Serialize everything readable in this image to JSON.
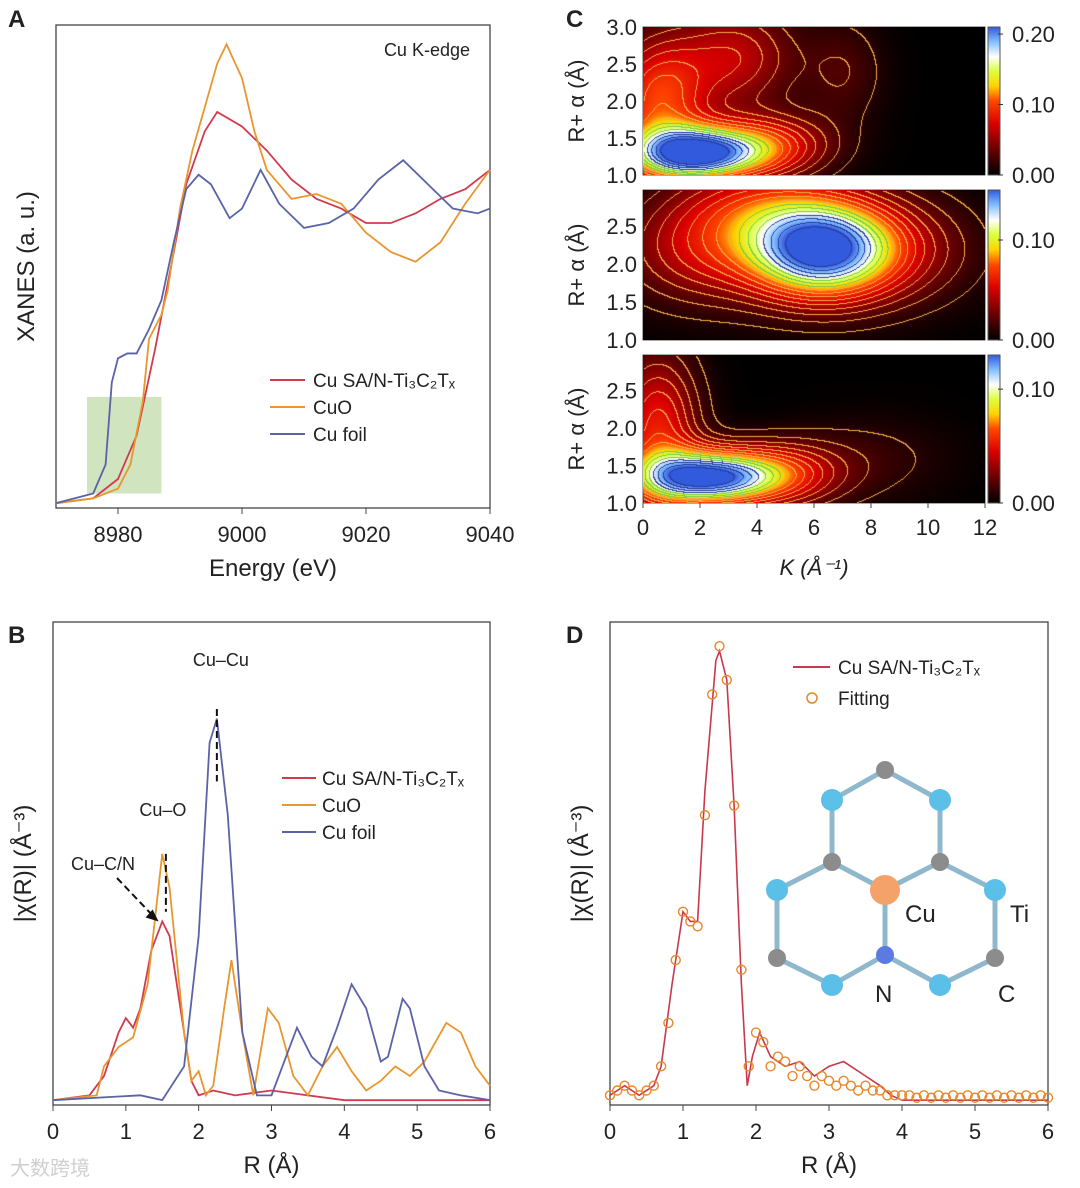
{
  "watermark": "大数跨境",
  "colors": {
    "cu_sa": "#d23a4e",
    "cuo": "#e8962e",
    "cu_foil": "#5a63a8",
    "highlight": "#c4ddb0",
    "fit": "#e8872a",
    "ti": "#5bbfe8",
    "cu_atom": "#f4a26a",
    "n_atom": "#5b7be0",
    "c_atom": "#8c8c8c"
  },
  "chart_data": [
    {
      "panel": "A",
      "type": "line",
      "annotation": "Cu K-edge",
      "xlabel": "Energy (eV)",
      "ylabel": "XANES (a. u.)",
      "xlim": [
        8970,
        9040
      ],
      "ylim": [
        0,
        1
      ],
      "xticks": [
        8980,
        9000,
        9020,
        9040
      ],
      "highlight_region": {
        "x": [
          8975,
          8987
        ],
        "y": [
          0.03,
          0.23
        ]
      },
      "legend_position": "middle-right",
      "series": [
        {
          "name": "Cu SA/N-Ti₃C₂Tₓ",
          "color": "#d23a4e",
          "x": [
            8970,
            8976,
            8980,
            8983,
            8986,
            8989,
            8991,
            8994,
            8996,
            9000,
            9004,
            9008,
            9012,
            9016,
            9020,
            9024,
            9028,
            9032,
            9036,
            9040
          ],
          "y": [
            0.01,
            0.02,
            0.06,
            0.15,
            0.33,
            0.53,
            0.67,
            0.78,
            0.82,
            0.79,
            0.74,
            0.68,
            0.64,
            0.62,
            0.59,
            0.59,
            0.61,
            0.64,
            0.66,
            0.7
          ]
        },
        {
          "name": "CuO",
          "color": "#e8962e",
          "x": [
            8970,
            8976,
            8980,
            8982,
            8984,
            8985,
            8987,
            8988,
            8990,
            8992,
            8994,
            8996,
            8997.5,
            9000,
            9002,
            9004,
            9008,
            9012,
            9016,
            9020,
            9024,
            9028,
            9032,
            9036,
            9040
          ],
          "y": [
            0.01,
            0.02,
            0.04,
            0.09,
            0.22,
            0.35,
            0.4,
            0.45,
            0.62,
            0.74,
            0.83,
            0.92,
            0.96,
            0.89,
            0.78,
            0.7,
            0.64,
            0.65,
            0.63,
            0.57,
            0.53,
            0.51,
            0.55,
            0.63,
            0.7
          ]
        },
        {
          "name": "Cu foil",
          "color": "#5a63a8",
          "x": [
            8970,
            8976,
            8978,
            8979,
            8980,
            8981.5,
            8983,
            8985,
            8987,
            8989,
            8991,
            8993,
            8995,
            8998,
            9000,
            9003,
            9006,
            9010,
            9014,
            9018,
            9022,
            9026,
            9030,
            9034,
            9038,
            9040
          ],
          "y": [
            0.01,
            0.03,
            0.09,
            0.26,
            0.31,
            0.32,
            0.32,
            0.37,
            0.43,
            0.55,
            0.66,
            0.69,
            0.67,
            0.6,
            0.62,
            0.7,
            0.63,
            0.58,
            0.59,
            0.62,
            0.68,
            0.72,
            0.67,
            0.62,
            0.61,
            0.62
          ]
        }
      ]
    },
    {
      "panel": "B",
      "type": "line",
      "xlabel": "R (Å)",
      "ylabel": "|χ(R)| (Å⁻³)",
      "xlim": [
        0,
        6
      ],
      "ylim": [
        0,
        1
      ],
      "xticks": [
        0,
        1,
        2,
        3,
        4,
        5,
        6
      ],
      "legend_position": "middle-right",
      "annotations": [
        {
          "text": "Cu–Cu",
          "x": 2.25,
          "y_line": [
            0.67,
            0.82
          ]
        },
        {
          "text": "Cu–O",
          "x": 1.55,
          "y_line": [
            0.4,
            0.52
          ]
        },
        {
          "text": "Cu–C/N",
          "arrow_to": [
            1.45,
            0.38
          ]
        }
      ],
      "series": [
        {
          "name": "Cu SA/N-Ti₃C₂Tₓ",
          "color": "#d23a4e",
          "x": [
            0,
            0.5,
            0.7,
            0.9,
            1.0,
            1.1,
            1.2,
            1.35,
            1.5,
            1.6,
            1.75,
            1.9,
            2.0,
            2.2,
            2.5,
            3.0,
            3.5,
            4,
            5,
            6
          ],
          "y": [
            0.01,
            0.02,
            0.06,
            0.15,
            0.18,
            0.16,
            0.2,
            0.32,
            0.38,
            0.35,
            0.2,
            0.05,
            0.02,
            0.03,
            0.02,
            0.03,
            0.02,
            0.01,
            0.01,
            0.01
          ]
        },
        {
          "name": "CuO",
          "color": "#e8962e",
          "x": [
            0,
            0.6,
            0.7,
            0.9,
            1.1,
            1.3,
            1.5,
            1.6,
            1.8,
            1.9,
            2.0,
            2.1,
            2.2,
            2.35,
            2.45,
            2.6,
            2.75,
            2.95,
            3.1,
            3.3,
            3.5,
            3.7,
            3.9,
            4.1,
            4.3,
            4.5,
            4.7,
            4.9,
            5.1,
            5.4,
            5.6,
            5.8,
            6
          ],
          "y": [
            0.01,
            0.02,
            0.08,
            0.12,
            0.14,
            0.25,
            0.52,
            0.45,
            0.15,
            0.05,
            0.07,
            0.02,
            0.04,
            0.2,
            0.3,
            0.15,
            0.02,
            0.2,
            0.17,
            0.06,
            0.02,
            0.08,
            0.12,
            0.07,
            0.03,
            0.05,
            0.08,
            0.06,
            0.09,
            0.17,
            0.15,
            0.08,
            0.04
          ]
        },
        {
          "name": "Cu foil",
          "color": "#5a63a8",
          "x": [
            0,
            1.2,
            1.5,
            1.8,
            2.0,
            2.15,
            2.25,
            2.4,
            2.6,
            2.8,
            3.0,
            3.2,
            3.35,
            3.55,
            3.7,
            3.9,
            4.1,
            4.3,
            4.5,
            4.6,
            4.8,
            4.9,
            5.1,
            5.3,
            5.6,
            6
          ],
          "y": [
            0.01,
            0.02,
            0.01,
            0.08,
            0.35,
            0.75,
            0.8,
            0.6,
            0.15,
            0.02,
            0.02,
            0.1,
            0.16,
            0.1,
            0.08,
            0.16,
            0.25,
            0.2,
            0.09,
            0.1,
            0.22,
            0.2,
            0.08,
            0.03,
            0.02,
            0.01
          ]
        }
      ]
    },
    {
      "panel": "C",
      "type": "heatmap",
      "xlabel": "K (Å⁻¹)",
      "ylabel": "R+ α (Å)",
      "xlim": [
        0,
        12
      ],
      "xticks": [
        0,
        2,
        4,
        6,
        8,
        10,
        12
      ],
      "maps": [
        {
          "name": "CuO",
          "ylim": [
            1.0,
            3.0
          ],
          "yticks": [
            "1.0",
            "1.5",
            "2.0",
            "2.5",
            "3.0"
          ],
          "zmax": 0.21,
          "cbar_ticks": [
            "0.00",
            "0.10",
            "0.20"
          ],
          "peaks": [
            {
              "k": 1.8,
              "R": 1.3,
              "sk": 1.6,
              "sR": 0.25,
              "a": 1.0
            },
            {
              "k": 4.5,
              "R": 1.4,
              "sk": 1.5,
              "sR": 0.3,
              "a": 0.35
            },
            {
              "k": 0.5,
              "R": 2.0,
              "sk": 1.2,
              "sR": 0.6,
              "a": 0.45
            },
            {
              "k": 3.2,
              "R": 2.6,
              "sk": 1.5,
              "sR": 0.5,
              "a": 0.3
            },
            {
              "k": 7,
              "R": 2.4,
              "sk": 1.0,
              "sR": 0.5,
              "a": 0.12
            }
          ]
        },
        {
          "name": "Cu foil",
          "ylim": [
            1.0,
            2.97
          ],
          "yticks": [
            "1.0",
            "1.5",
            "2.0",
            "2.5"
          ],
          "zmax": 0.15,
          "cbar_ticks": [
            "0.00",
            "0.10"
          ],
          "peaks": [
            {
              "k": 6.2,
              "R": 2.2,
              "sk": 1.8,
              "sR": 0.45,
              "a": 1.0
            },
            {
              "k": 2,
              "R": 2.2,
              "sk": 2,
              "sR": 0.5,
              "a": 0.3
            },
            {
              "k": 9,
              "R": 2.2,
              "sk": 2,
              "sR": 0.5,
              "a": 0.2
            },
            {
              "k": 4,
              "R": 2.8,
              "sk": 2,
              "sR": 0.4,
              "a": 0.25
            }
          ]
        },
        {
          "name": "Cu SA/N-Ti₃C₂Tₓ",
          "ylim": [
            1.0,
            2.97
          ],
          "yticks": [
            "1.0",
            "1.5",
            "2.0",
            "2.5"
          ],
          "zmax": 0.13,
          "cbar_ticks": [
            "0.00",
            "0.10"
          ],
          "peaks": [
            {
              "k": 2.2,
              "R": 1.35,
              "sk": 1.7,
              "sR": 0.25,
              "a": 1.0
            },
            {
              "k": 5,
              "R": 1.4,
              "sk": 1.5,
              "sR": 0.3,
              "a": 0.3
            },
            {
              "k": 0.5,
              "R": 2.0,
              "sk": 1,
              "sR": 0.7,
              "a": 0.4
            },
            {
              "k": 8,
              "R": 1.6,
              "sk": 2,
              "sR": 0.4,
              "a": 0.08
            }
          ]
        }
      ]
    },
    {
      "panel": "D",
      "type": "line",
      "xlabel": "R (Å)",
      "ylabel": "|χ(R)| (Å⁻³)",
      "xlim": [
        0,
        6
      ],
      "ylim": [
        0,
        1
      ],
      "xticks": [
        0,
        1,
        2,
        3,
        4,
        5,
        6
      ],
      "legend_position": "top-right",
      "series": [
        {
          "name": "Cu SA/N-Ti₃C₂Tₓ",
          "color": "#c8394c",
          "style": "line",
          "x": [
            0,
            0.2,
            0.4,
            0.6,
            0.7,
            0.85,
            1.0,
            1.1,
            1.2,
            1.3,
            1.45,
            1.5,
            1.6,
            1.7,
            1.8,
            1.88,
            1.95,
            2.05,
            2.2,
            2.4,
            2.6,
            2.8,
            3.0,
            3.2,
            3.5,
            3.7,
            3.85,
            4,
            6
          ],
          "y": [
            0.02,
            0.04,
            0.02,
            0.04,
            0.08,
            0.25,
            0.4,
            0.38,
            0.38,
            0.65,
            0.92,
            0.94,
            0.88,
            0.62,
            0.25,
            0.04,
            0.1,
            0.15,
            0.1,
            0.08,
            0.09,
            0.06,
            0.08,
            0.09,
            0.06,
            0.04,
            0.02,
            0.01,
            0.01
          ]
        },
        {
          "name": "Fitting",
          "color": "#e8872a",
          "style": "circles",
          "x": [
            0,
            0.1,
            0.2,
            0.3,
            0.4,
            0.5,
            0.6,
            0.7,
            0.8,
            0.9,
            1.0,
            1.1,
            1.2,
            1.3,
            1.4,
            1.5,
            1.6,
            1.7,
            1.8,
            1.9,
            2.0,
            2.1,
            2.2,
            2.3,
            2.4,
            2.5,
            2.6,
            2.7,
            2.8,
            2.9,
            3.0,
            3.1,
            3.2,
            3.3,
            3.4,
            3.5,
            3.6,
            3.7,
            3.8,
            3.9,
            4.0,
            4.1,
            4.2,
            4.3,
            4.4,
            4.5,
            4.6,
            4.7,
            4.8,
            4.9,
            5.0,
            5.1,
            5.2,
            5.3,
            5.4,
            5.5,
            5.6,
            5.7,
            5.8,
            5.9,
            6.0
          ],
          "y": [
            0.02,
            0.03,
            0.04,
            0.03,
            0.02,
            0.03,
            0.04,
            0.08,
            0.17,
            0.3,
            0.4,
            0.38,
            0.37,
            0.6,
            0.85,
            0.95,
            0.88,
            0.62,
            0.28,
            0.08,
            0.15,
            0.13,
            0.08,
            0.1,
            0.09,
            0.06,
            0.08,
            0.06,
            0.04,
            0.06,
            0.05,
            0.04,
            0.05,
            0.04,
            0.03,
            0.04,
            0.03,
            0.03,
            0.02,
            0.02,
            0.02,
            0.02,
            0.015,
            0.02,
            0.015,
            0.02,
            0.015,
            0.02,
            0.015,
            0.02,
            0.015,
            0.02,
            0.015,
            0.02,
            0.015,
            0.02,
            0.015,
            0.02,
            0.015,
            0.02,
            0.015
          ]
        }
      ],
      "inset_labels": {
        "cu": "Cu",
        "ti": "Ti",
        "n": "N",
        "c": "C"
      }
    }
  ],
  "panel_labels": [
    "A",
    "B",
    "C",
    "D"
  ]
}
